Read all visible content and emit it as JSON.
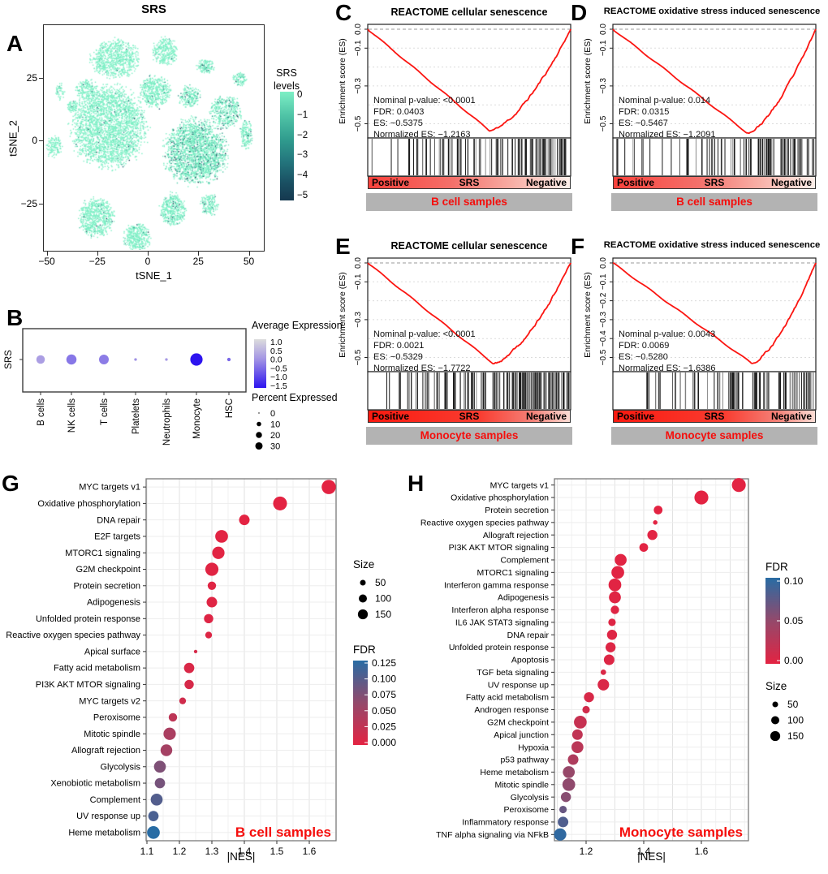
{
  "colors": {
    "scatter_main": "#7DEFC5",
    "scatter_dark": [
      "#52CBAA",
      "#2F9D8D",
      "#1D6272",
      "#15374E"
    ],
    "tsne_bar": [
      "#7DEFC5",
      "#4FC3A6",
      "#2F9A8D",
      "#23747C",
      "#1A5163",
      "#15384F"
    ],
    "gsea_red": "#FB1511",
    "annotation_red": "#F50E0C",
    "fdr_stops": [
      "#E32342",
      "#94496B",
      "#286CA4"
    ],
    "avg_expr_stops": [
      "#DCDCDC",
      "#A496E4",
      "#2D14EF"
    ],
    "sample_bar_bg": "#B3B3B3",
    "grad_bcell": "linear-gradient(to right, #F9423C 0%, #F4706A 42%, #F8AFA6 72%, #FDEFEA 100%)",
    "grad_mono": "linear-gradient(to right, #FA1A10 0%, #F93C30 55%, #F4837A 82%, #FBDDD5 100%)"
  },
  "chart_data": [
    {
      "id": "A",
      "panel_label": "A",
      "type": "scatter",
      "title": "SRS",
      "xlabel": "tSNE_1",
      "ylabel": "tSNE_2",
      "x_tick_values": [
        -50,
        -25,
        0,
        25,
        50
      ],
      "x_tick_labels": [
        "−50",
        "−25",
        "0",
        "25",
        "50"
      ],
      "y_tick_values": [
        25,
        0,
        -25
      ],
      "y_tick_labels": [
        "25",
        "0",
        "−25"
      ],
      "colorbar": {
        "title_lines": [
          "SRS",
          "levels"
        ],
        "tick_labels": [
          "0",
          "−1",
          "−2",
          "−3",
          "−4",
          "−5"
        ]
      },
      "clusters": [
        [
          -20,
          6,
          17,
          15,
          2600,
          0.04
        ],
        [
          -17,
          33,
          11,
          7,
          750,
          0.03
        ],
        [
          -31,
          21,
          5,
          4,
          160,
          0.02
        ],
        [
          8,
          36,
          6,
          5,
          300,
          0.05
        ],
        [
          23,
          -4,
          14,
          12,
          2000,
          0.25
        ],
        [
          38,
          12,
          7,
          6,
          380,
          0.18
        ],
        [
          -47,
          -2,
          3.5,
          4,
          130,
          0.02
        ],
        [
          -26,
          -30,
          8,
          7,
          650,
          0.04
        ],
        [
          -6,
          -38,
          6,
          5,
          380,
          0.04
        ],
        [
          12,
          -27,
          6,
          6,
          400,
          0.1
        ],
        [
          30,
          -25,
          4,
          4,
          160,
          0.1
        ],
        [
          45,
          25,
          3,
          2.5,
          90,
          0.1
        ],
        [
          28,
          30,
          4,
          2.5,
          130,
          0.06
        ],
        [
          -38,
          14,
          2.5,
          2,
          70,
          0.02
        ],
        [
          3,
          20,
          7,
          6,
          450,
          0.06
        ],
        [
          48,
          3,
          3,
          5,
          150,
          0.14
        ],
        [
          -44,
          20,
          2,
          3,
          50,
          0.02
        ],
        [
          20,
          18,
          5,
          4,
          200,
          0.12
        ]
      ]
    },
    {
      "id": "B",
      "panel_label": "B",
      "type": "dotplot",
      "row_label": "SRS",
      "categories": [
        "B cells",
        "NK cells",
        "T cells",
        "Platelets",
        "Neutrophils",
        "Monocyte",
        "HSC"
      ],
      "avg_expression": [
        -0.1,
        -0.55,
        -0.5,
        -0.3,
        -0.2,
        -1.5,
        -0.7
      ],
      "percent_expressed": [
        15,
        22,
        20,
        1,
        1,
        33,
        2
      ],
      "legend_avg": {
        "title": "Average Expression",
        "tick_labels": [
          "1.0",
          "0.5",
          "0.0",
          "−0.5",
          "−1.0",
          "−1.5"
        ],
        "range": [
          1.0,
          -1.5
        ]
      },
      "legend_pct": {
        "title": "Percent Expressed",
        "values": [
          0,
          10,
          20,
          30
        ]
      }
    },
    {
      "id": "C",
      "panel_label": "C",
      "type": "line",
      "title": "REACTOME cellular senescence",
      "ylabel": "Enrichment score (ES)",
      "stats": [
        "Nominal p-value: <0.0001",
        "FDR: 0.0403",
        "ES: −0.5375",
        "Normalized ES: −1.2163"
      ],
      "bar_labels": [
        "Positive",
        "SRS",
        "Negative"
      ],
      "sample": "B cell samples",
      "y_tick_values": [
        0,
        -0.1,
        -0.3,
        -0.5
      ],
      "y_tick_labels": [
        "0.0",
        "−0.1",
        "−0.3",
        "−0.5"
      ],
      "es_min": -0.5375,
      "t_min": 0.6,
      "seed": 11,
      "n_bars": 100,
      "grad": "grad_bcell"
    },
    {
      "id": "D",
      "panel_label": "D",
      "type": "line",
      "title": "REACTOME oxidative stress induced senescence",
      "ylabel": "Enrichment score (ES)",
      "stats": [
        "Nominal p-value: 0.014",
        "FDR: 0.0315",
        "ES: −0.5467",
        "Normalized ES: −1.2091"
      ],
      "bar_labels": [
        "Positive",
        "SRS",
        "Negative"
      ],
      "sample": "B cell samples",
      "y_tick_values": [
        0,
        -0.1,
        -0.3,
        -0.5
      ],
      "y_tick_labels": [
        "0.0",
        "−0.1",
        "−0.3",
        "−0.5"
      ],
      "es_min": -0.5467,
      "t_min": 0.66,
      "seed": 23,
      "n_bars": 88,
      "grad": "grad_bcell"
    },
    {
      "id": "E",
      "panel_label": "E",
      "type": "line",
      "title": "REACTOME cellular senescence",
      "ylabel": "Enrichment score (ES)",
      "stats": [
        "Nominal p-value: <0.0001",
        "FDR: 0.0021",
        "ES: −0.5329",
        "Normalized ES: −1.7722"
      ],
      "bar_labels": [
        "Positive",
        "SRS",
        "Negative"
      ],
      "sample": "Monocyte samples",
      "y_tick_values": [
        0,
        -0.1,
        -0.3,
        -0.5
      ],
      "y_tick_labels": [
        "0.0",
        "−0.1",
        "−0.3",
        "−0.5"
      ],
      "es_min": -0.5329,
      "t_min": 0.62,
      "seed": 37,
      "n_bars": 140,
      "grad": "grad_mono"
    },
    {
      "id": "F",
      "panel_label": "F",
      "type": "line",
      "title": "REACTOME oxidative stress induced senescence",
      "ylabel": "Enrichment score (ES)",
      "stats": [
        "Nominal p-value: 0.0043",
        "FDR: 0.0069",
        "ES: −0.5280",
        "Normalized ES: −1.6386"
      ],
      "bar_labels": [
        "Positive",
        "SRS",
        "Negative"
      ],
      "sample": "Monocyte samples",
      "y_tick_values": [
        0,
        -0.1,
        -0.2,
        -0.3,
        -0.4,
        -0.5
      ],
      "y_tick_labels": [
        "0.0",
        "−0.1",
        "−0.2",
        "−0.3",
        "−0.4",
        "−0.5"
      ],
      "es_min": -0.528,
      "t_min": 0.68,
      "seed": 51,
      "n_bars": 96,
      "grad": "grad_mono"
    },
    {
      "id": "G",
      "panel_label": "G",
      "type": "scatter",
      "xlabel": "|NES|",
      "annotation": "B cell samples",
      "x_tick_values": [
        1.1,
        1.2,
        1.3,
        1.4,
        1.5,
        1.6
      ],
      "x_tick_labels": [
        "1.1",
        "1.2",
        "1.3",
        "1.4",
        "1.5",
        "1.6"
      ],
      "xlim": [
        1.08,
        1.683
      ],
      "size_legend": {
        "title": "Size",
        "values": [
          50,
          100,
          150
        ]
      },
      "fdr_legend": {
        "title": "FDR",
        "tick_labels": [
          "0.125",
          "0.100",
          "0.075",
          "0.050",
          "0.025",
          "0.000"
        ],
        "max": 0.125
      },
      "rows": [
        [
          "MYC targets v1",
          1.66,
          200,
          0.0
        ],
        [
          "Oxidative phosphorylation",
          1.51,
          190,
          0.0
        ],
        [
          "DNA repair",
          1.4,
          110,
          0.0
        ],
        [
          "E2F targets",
          1.33,
          160,
          0.001
        ],
        [
          "MTORC1 signaling",
          1.32,
          150,
          0.001
        ],
        [
          "G2M checkpoint",
          1.3,
          170,
          0.002
        ],
        [
          "Protein secretion",
          1.3,
          70,
          0.003
        ],
        [
          "Adipogenesis",
          1.3,
          110,
          0.003
        ],
        [
          "Unfolded protein response",
          1.29,
          85,
          0.004
        ],
        [
          "Reactive oxygen species pathway",
          1.29,
          45,
          0.005
        ],
        [
          "Apical surface",
          1.25,
          12,
          0.01
        ],
        [
          "Fatty acid metabolism",
          1.23,
          105,
          0.008
        ],
        [
          "PI3K AKT MTOR signaling",
          1.23,
          85,
          0.01
        ],
        [
          "MYC targets v2",
          1.21,
          45,
          0.015
        ],
        [
          "Peroxisome",
          1.18,
          70,
          0.03
        ],
        [
          "Mitotic spindle",
          1.17,
          150,
          0.045
        ],
        [
          "Allograft rejection",
          1.16,
          135,
          0.05
        ],
        [
          "Glycolysis",
          1.14,
          140,
          0.075
        ],
        [
          "Xenobiotic metabolism",
          1.14,
          105,
          0.08
        ],
        [
          "Complement",
          1.13,
          140,
          0.1
        ],
        [
          "UV response up",
          1.12,
          105,
          0.105
        ],
        [
          "Heme metabolism",
          1.12,
          160,
          0.125
        ]
      ]
    },
    {
      "id": "H",
      "panel_label": "H",
      "type": "scatter",
      "xlabel": "|NES|",
      "annotation": "Monocyte samples",
      "x_tick_values": [
        1.2,
        1.4,
        1.6
      ],
      "x_tick_labels": [
        "1.2",
        "1.4",
        "1.6"
      ],
      "xlim": [
        1.085,
        1.76
      ],
      "size_legend": {
        "title": "Size",
        "values": [
          50,
          100,
          150
        ]
      },
      "fdr_legend": {
        "title": "FDR",
        "tick_labels": [
          "0.10",
          "0.05",
          "0.00"
        ],
        "max": 0.135
      },
      "rows": [
        [
          "MYC targets v1",
          1.73,
          190,
          0.0
        ],
        [
          "Oxidative phosphorylation",
          1.6,
          190,
          0.0
        ],
        [
          "Protein secretion",
          1.45,
          75,
          0.0
        ],
        [
          "Reactive oxygen species pathway",
          1.44,
          20,
          0.001
        ],
        [
          "Allograft rejection",
          1.43,
          100,
          0.001
        ],
        [
          "PI3K AKT MTOR signaling",
          1.4,
          75,
          0.001
        ],
        [
          "Complement",
          1.32,
          140,
          0.002
        ],
        [
          "MTORC1 signaling",
          1.31,
          160,
          0.002
        ],
        [
          "Interferon gamma response",
          1.3,
          160,
          0.002
        ],
        [
          "Adipogenesis",
          1.3,
          140,
          0.003
        ],
        [
          "Interferon alpha response",
          1.3,
          70,
          0.003
        ],
        [
          "IL6 JAK STAT3 signaling",
          1.29,
          55,
          0.004
        ],
        [
          "DNA repair",
          1.29,
          100,
          0.004
        ],
        [
          "Unfolded protein response",
          1.285,
          100,
          0.005
        ],
        [
          "Apoptosis",
          1.28,
          110,
          0.005
        ],
        [
          "TGF beta signaling",
          1.26,
          30,
          0.008
        ],
        [
          "UV response up",
          1.26,
          130,
          0.008
        ],
        [
          "Fatty acid metabolism",
          1.21,
          100,
          0.01
        ],
        [
          "Androgen response",
          1.2,
          55,
          0.015
        ],
        [
          "G2M checkpoint",
          1.18,
          160,
          0.025
        ],
        [
          "Apical junction",
          1.17,
          110,
          0.03
        ],
        [
          "Hypoxia",
          1.17,
          140,
          0.035
        ],
        [
          "p53 pathway",
          1.155,
          110,
          0.045
        ],
        [
          "Heme metabolism",
          1.14,
          140,
          0.065
        ],
        [
          "Mitotic spindle",
          1.14,
          160,
          0.07
        ],
        [
          "Glycolysis",
          1.13,
          100,
          0.075
        ],
        [
          "Peroxisome",
          1.12,
          55,
          0.095
        ],
        [
          "Inflammatory response",
          1.12,
          110,
          0.11
        ],
        [
          "TNF alpha signaling via NFkB",
          1.11,
          150,
          0.13
        ]
      ]
    }
  ]
}
